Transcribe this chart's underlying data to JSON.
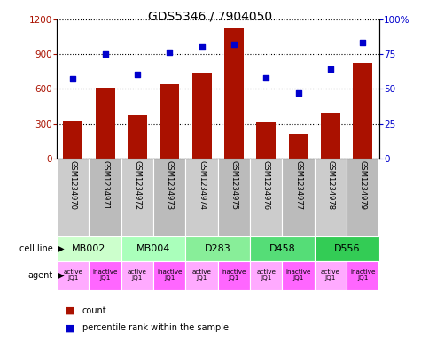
{
  "title": "GDS5346 / 7904050",
  "samples": [
    "GSM1234970",
    "GSM1234971",
    "GSM1234972",
    "GSM1234973",
    "GSM1234974",
    "GSM1234975",
    "GSM1234976",
    "GSM1234977",
    "GSM1234978",
    "GSM1234979"
  ],
  "counts": [
    320,
    610,
    370,
    640,
    730,
    1120,
    310,
    210,
    390,
    820
  ],
  "percentiles": [
    57,
    75,
    60,
    76,
    80,
    82,
    58,
    47,
    64,
    83
  ],
  "cell_line_labels": [
    "MB002",
    "MB004",
    "D283",
    "D458",
    "D556"
  ],
  "cell_line_cols": [
    [
      0,
      1
    ],
    [
      2,
      3
    ],
    [
      4,
      5
    ],
    [
      6,
      7
    ],
    [
      8,
      9
    ]
  ],
  "cell_line_colors": [
    "#ccffcc",
    "#aaffbb",
    "#88ee99",
    "#55dd77",
    "#33cc55"
  ],
  "agent_color_even": "#ffaaff",
  "agent_color_odd": "#ff66ff",
  "gsm_color_even": "#cccccc",
  "gsm_color_odd": "#bbbbbb",
  "bar_color": "#aa1100",
  "dot_color": "#0000cc",
  "ylim_left": [
    0,
    1200
  ],
  "ylim_right": [
    0,
    100
  ],
  "yticks_left": [
    0,
    300,
    600,
    900,
    1200
  ],
  "ytick_labels_left": [
    "0",
    "300",
    "600",
    "900",
    "1200"
  ],
  "yticks_right": [
    0,
    25,
    50,
    75,
    100
  ],
  "ytick_labels_right": [
    "0",
    "25",
    "50",
    "75",
    "100%"
  ]
}
